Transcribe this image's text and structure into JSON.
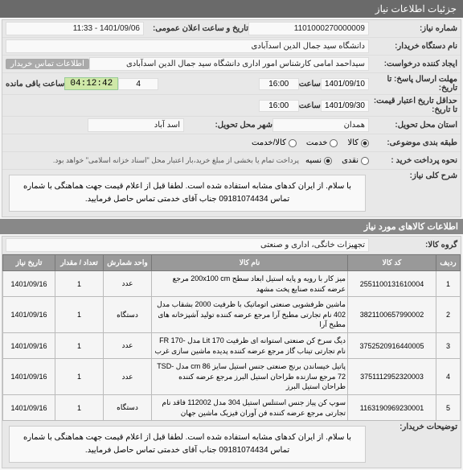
{
  "header": {
    "title": "جزئیات اطلاعات نیاز"
  },
  "fields": {
    "need_no_label": "شماره نیاز:",
    "need_no": "1101000270000009",
    "ann_datetime_label": "تاریخ و ساعت اعلان عمومی:",
    "ann_datetime": "1401/09/06 - 11:33",
    "buyer_label": "نام دستگاه خریدار:",
    "buyer": "دانشگاه سید جمال الدین اسدآبادی",
    "creator_label": "ایجاد کننده درخواست:",
    "creator": "سیداحمد امامی کارشناس امور اداری دانشگاه سید جمال الدین اسدآبادی",
    "contact_tag": "اطلاعات تماس خریدار",
    "deadline_label": "مهلت ارسال پاسخ: تا تاریخ:",
    "deadline_date": "1401/09/10",
    "time_label": "ساعت",
    "deadline_time": "16:00",
    "timer": "04:12:42",
    "remaining": "ساعت باقی مانده",
    "remaining_count": "4",
    "validity_label": "حداقل تاریخ اعتبار قیمت: تا تاریخ:",
    "validity_date": "1401/09/30",
    "validity_time": "16:00",
    "province_label": "استان محل تحویل:",
    "province": "همدان",
    "city_label": "شهر محل تحویل:",
    "city": "اسد آباد",
    "budget_label": "طبقه بندی موضوعی:",
    "budget_opt1": "کالا",
    "budget_opt2": "خدمت",
    "budget_opt3": "کالا/خدمت",
    "partial_label": "نحوه پرداخت خرید :",
    "partial_opt1": "نقدی",
    "partial_opt2": "نسیه",
    "partial_note": "پرداخت تمام یا بخشی از مبلغ خرید،بار اعتبار محل \"اسناد خزانه اسلامی\" خواهد بود.",
    "desc_label": "شرح کلی نیاز:",
    "desc": "با سلام. از ایران کدهای مشابه استفاده شده است. لطفا قبل از اعلام قیمت جهت هماهنگی با شماره تماس 09181074434 جناب آقای خدمتی تماس حاصل فرمایید."
  },
  "goods_header": "اطلاعات کالاهای مورد نیاز",
  "group_label": "گروه کالا:",
  "group_value": "تجهیزات خانگی، اداری و صنعتی",
  "table": {
    "headers": [
      "ردیف",
      "کد کالا",
      "نام کالا",
      "واحد شمارش",
      "تعداد / مقدار",
      "تاریخ نیاز"
    ],
    "rows": [
      [
        "1",
        "2551100131610004",
        "میز کار با رویه و پایه استیل ابعاد سطح 200x100 cm مرجع عرضه کننده صنایع پخت مشهد",
        "عدد",
        "1",
        "1401/09/16"
      ],
      [
        "2",
        "3821100657990002",
        "ماشین ظرفشویی صنعتی اتوماتیک با ظرفیت 2000 بشقاب مدل 402 نام تجارتی مطبخ آرا مرجع عرضه کننده تولید آشپزخانه های مطبخ آرا",
        "دستگاه",
        "1",
        "1401/09/16"
      ],
      [
        "3",
        "3752520916440005",
        "دیگ سرخ کن صنعتی استوانه ای ظرفیت 170 Lit مدل -FR 170 نام تجارتی تیناب گاز مرجع عرضه کننده پدیده ماشین سازی غرب",
        "عدد",
        "1",
        "1401/09/16"
      ],
      [
        "4",
        "3751112952320003",
        "پاتیل خیساندن برنج صنعتی جنس استیل سایز 86 cm مدل TSD-72 مرجع سازنده طراحان استیل البرز مرجع عرضه کننده طراحان استیل البرز",
        "عدد",
        "1",
        "1401/09/16"
      ],
      [
        "5",
        "1163190969230001",
        "سوپ کن پیاز جنس استنلس استیل 304 مدل 112002 فاقد نام تجارتی مرجع عرضه کننده فن آوران فیزیک ماشین جهان",
        "دستگاه",
        "1",
        "1401/09/16"
      ]
    ]
  },
  "notes_label": "توضیحات خریدار:",
  "notes": "با سلام. از ایران کدهای مشابه استفاده شده است. لطفا قبل از اعلام قیمت جهت هماهنگی با شماره تماس 09181074434 جناب آقای خدمتی تماس حاصل فرمایید."
}
